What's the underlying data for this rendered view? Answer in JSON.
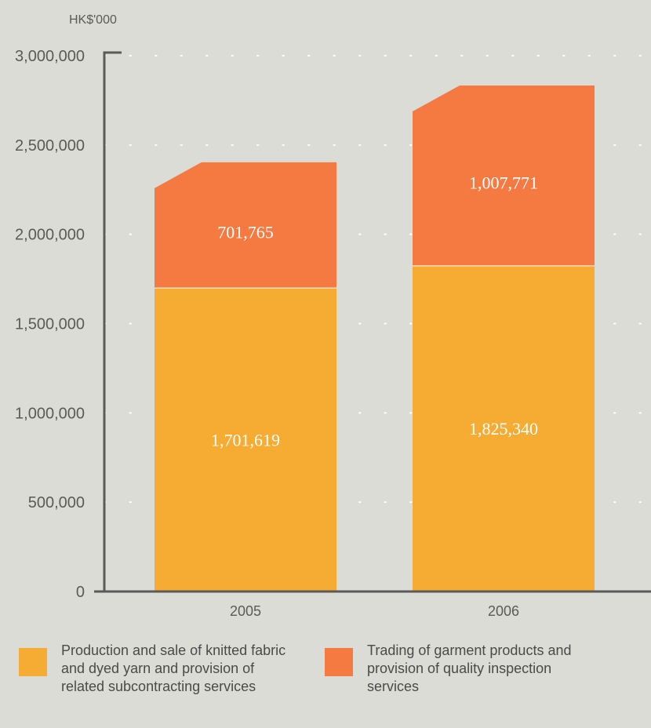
{
  "chart_data": {
    "type": "bar",
    "stacked": true,
    "unit_label": "HK$'000",
    "categories": [
      "2005",
      "2006"
    ],
    "series": [
      {
        "name": "Production and sale of knitted fabric\nand dyed yarn and provision of\nrelated subcontracting services",
        "values": [
          1701619,
          1825340
        ],
        "labels": [
          "1,701,619",
          "1,825,340"
        ],
        "color": "#f6ab32"
      },
      {
        "name": "Trading of garment products and\nprovision of quality inspection\nservices",
        "values": [
          701765,
          1007771
        ],
        "labels": [
          "701,765",
          "1,007,771"
        ],
        "color": "#f47a42"
      }
    ],
    "ylim": [
      0,
      3000000
    ],
    "yticks": [
      0,
      500000,
      1000000,
      1500000,
      2000000,
      2500000,
      3000000
    ],
    "ytick_labels": [
      "0",
      "500,000",
      "1,000,000",
      "1,500,000",
      "2,000,000",
      "2,500,000",
      "3,000,000"
    ],
    "grid": "dotted-horizontal",
    "legend_position": "bottom"
  }
}
